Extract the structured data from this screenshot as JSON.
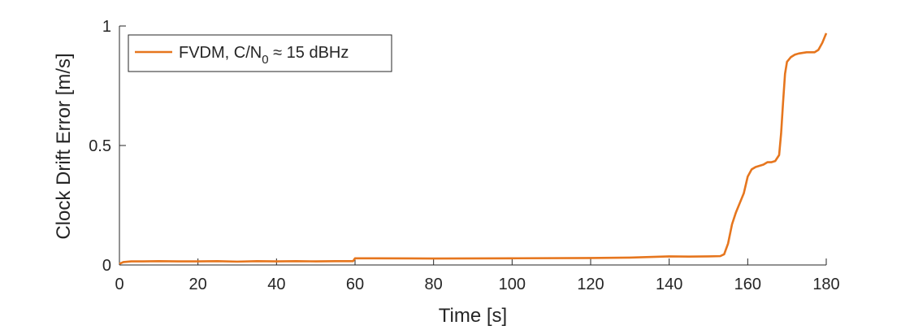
{
  "chart_data": {
    "type": "line",
    "title": "",
    "xlabel": "Time [s]",
    "ylabel": "Clock Drift Error [m/s]",
    "xlim": [
      0,
      180
    ],
    "ylim": [
      0,
      1
    ],
    "xticks": [
      0,
      20,
      40,
      60,
      80,
      100,
      120,
      140,
      160,
      180
    ],
    "yticks": [
      0,
      0.5,
      1
    ],
    "ytick_labels": [
      "0",
      "0.5",
      "1"
    ],
    "grid": false,
    "legend_position": "top-left",
    "series": [
      {
        "name": "FVDM, C/N",
        "name_subscript": "0",
        "name_suffix": " ≈ 15 dBHz",
        "color": "#E6761E",
        "points": [
          [
            0,
            0.005
          ],
          [
            1,
            0.012
          ],
          [
            3,
            0.015
          ],
          [
            6,
            0.015
          ],
          [
            10,
            0.016
          ],
          [
            15,
            0.015
          ],
          [
            20,
            0.015
          ],
          [
            25,
            0.016
          ],
          [
            30,
            0.014
          ],
          [
            35,
            0.016
          ],
          [
            40,
            0.015
          ],
          [
            45,
            0.016
          ],
          [
            50,
            0.015
          ],
          [
            55,
            0.016
          ],
          [
            59.5,
            0.016
          ],
          [
            60,
            0.028
          ],
          [
            65,
            0.028
          ],
          [
            80,
            0.027
          ],
          [
            100,
            0.028
          ],
          [
            120,
            0.029
          ],
          [
            130,
            0.031
          ],
          [
            140,
            0.036
          ],
          [
            145,
            0.035
          ],
          [
            150,
            0.036
          ],
          [
            153,
            0.037
          ],
          [
            154,
            0.045
          ],
          [
            155,
            0.09
          ],
          [
            156,
            0.17
          ],
          [
            157,
            0.22
          ],
          [
            158,
            0.26
          ],
          [
            159,
            0.3
          ],
          [
            160,
            0.37
          ],
          [
            161,
            0.4
          ],
          [
            162,
            0.41
          ],
          [
            163,
            0.415
          ],
          [
            164,
            0.42
          ],
          [
            165,
            0.43
          ],
          [
            166,
            0.43
          ],
          [
            167,
            0.435
          ],
          [
            168,
            0.46
          ],
          [
            168.5,
            0.55
          ],
          [
            169,
            0.68
          ],
          [
            169.5,
            0.8
          ],
          [
            170,
            0.85
          ],
          [
            171,
            0.87
          ],
          [
            172,
            0.88
          ],
          [
            173,
            0.885
          ],
          [
            175,
            0.89
          ],
          [
            177,
            0.89
          ],
          [
            178,
            0.9
          ],
          [
            179,
            0.93
          ],
          [
            180,
            0.97
          ]
        ]
      }
    ]
  }
}
